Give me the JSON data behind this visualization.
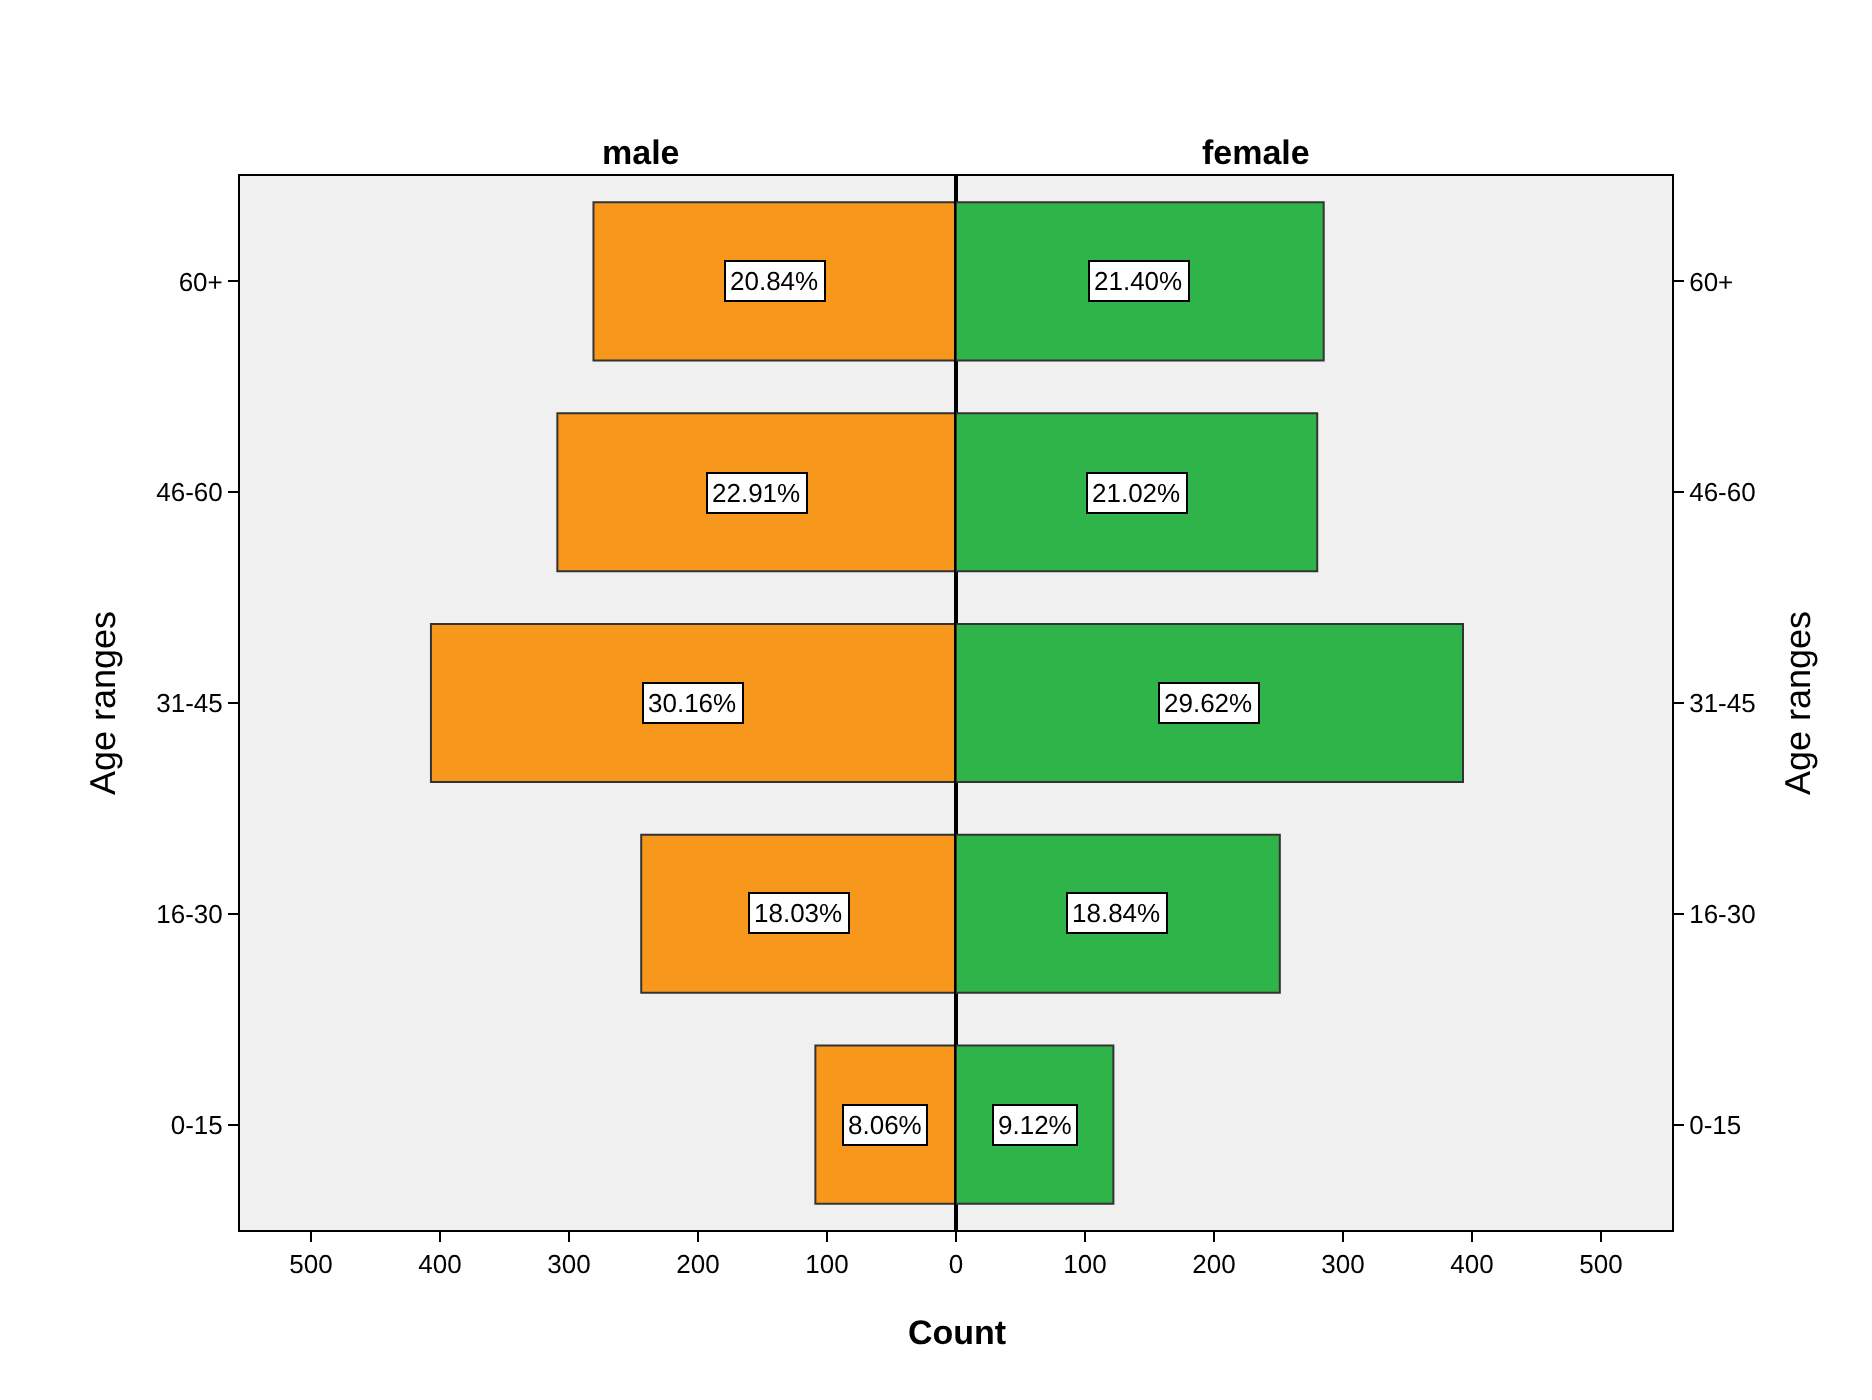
{
  "chart_data": [
    {
      "type": "bar",
      "orientation": "horizontal",
      "title": "male",
      "xlabel": "Count",
      "ylabel": "Age ranges",
      "categories": [
        "60+",
        "46-60",
        "31-45",
        "16-30",
        "0-15"
      ],
      "series": [
        {
          "color": "#f7981d",
          "values": [
            281,
            309,
            407,
            244,
            109
          ]
        }
      ],
      "annotations": [
        "20.84%",
        "22.91%",
        "30.16%",
        "18.03%",
        "8.06%"
      ],
      "xlim": [
        555,
        0
      ],
      "xticks": [
        500,
        400,
        300,
        200,
        100,
        {
          "value": 0,
          "label": null
        }
      ],
      "grid": false
    },
    {
      "type": "bar",
      "orientation": "horizontal",
      "title": "female",
      "ylabel": "Age ranges",
      "categories": [
        "60+",
        "46-60",
        "31-45",
        "16-30",
        "0-15"
      ],
      "series": [
        {
          "color": "#2fb44a",
          "values": [
            285,
            280,
            393,
            251,
            122
          ]
        }
      ],
      "annotations": [
        "21.40%",
        "21.02%",
        "29.62%",
        "18.84%",
        "9.12%"
      ],
      "xlim": [
        0,
        555
      ],
      "xticks": [
        0,
        100,
        200,
        300,
        400,
        500
      ],
      "grid": false
    }
  ]
}
